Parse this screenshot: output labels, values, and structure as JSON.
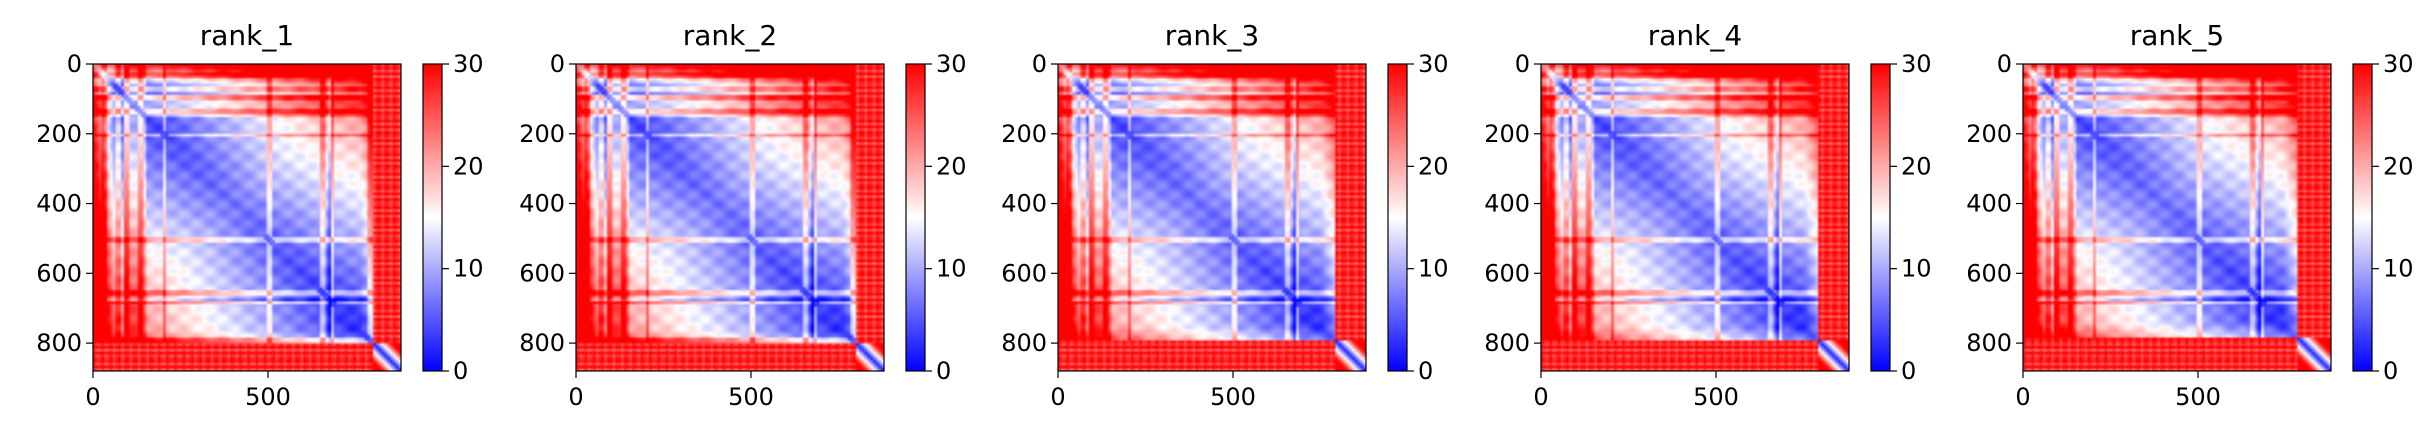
{
  "chart_data": [
    {
      "type": "heatmap",
      "title": "rank_1",
      "xlim": [
        0,
        880
      ],
      "ylim": [
        880,
        0
      ],
      "x_ticks": [
        0,
        500
      ],
      "y_ticks": [
        0,
        200,
        400,
        600,
        800
      ],
      "colorbar": {
        "min": 0,
        "max": 30,
        "ticks": [
          0,
          10,
          20,
          30
        ],
        "colormap": "bwr"
      },
      "features": {
        "breaks": [
          25,
          65,
          95,
          130,
          200,
          500,
          650,
          680,
          790,
          820,
          850
        ],
        "tail_start": 800,
        "stripe_col": 670
      }
    },
    {
      "type": "heatmap",
      "title": "rank_2",
      "xlim": [
        0,
        880
      ],
      "ylim": [
        880,
        0
      ],
      "x_ticks": [
        0,
        500
      ],
      "y_ticks": [
        0,
        200,
        400,
        600,
        800
      ],
      "colorbar": {
        "min": 0,
        "max": 30,
        "ticks": [
          0,
          10,
          20,
          30
        ],
        "colormap": "bwr"
      },
      "features": {
        "breaks": [
          25,
          65,
          95,
          130,
          200,
          500,
          650,
          680,
          790,
          820,
          850
        ],
        "tail_start": 800,
        "stripe_col": 670
      }
    },
    {
      "type": "heatmap",
      "title": "rank_3",
      "xlim": [
        0,
        880
      ],
      "ylim": [
        880,
        0
      ],
      "x_ticks": [
        0,
        500
      ],
      "y_ticks": [
        0,
        200,
        400,
        600,
        800
      ],
      "colorbar": {
        "min": 0,
        "max": 30,
        "ticks": [
          0,
          10,
          20,
          30
        ],
        "colormap": "bwr"
      },
      "features": {
        "breaks": [
          25,
          65,
          95,
          130,
          200,
          500,
          650,
          680,
          790,
          820,
          850
        ],
        "tail_start": 790,
        "stripe_col": 670
      }
    },
    {
      "type": "heatmap",
      "title": "rank_4",
      "xlim": [
        0,
        880
      ],
      "ylim": [
        880,
        0
      ],
      "x_ticks": [
        0,
        500
      ],
      "y_ticks": [
        0,
        200,
        400,
        600,
        800
      ],
      "colorbar": {
        "min": 0,
        "max": 30,
        "ticks": [
          0,
          10,
          20,
          30
        ],
        "colormap": "bwr"
      },
      "features": {
        "breaks": [
          25,
          65,
          95,
          130,
          200,
          500,
          650,
          680,
          790,
          820,
          850
        ],
        "tail_start": 790,
        "stripe_col": 670
      }
    },
    {
      "type": "heatmap",
      "title": "rank_5",
      "xlim": [
        0,
        880
      ],
      "ylim": [
        880,
        0
      ],
      "x_ticks": [
        0,
        500
      ],
      "y_ticks": [
        0,
        200,
        400,
        600,
        800
      ],
      "colorbar": {
        "min": 0,
        "max": 30,
        "ticks": [
          0,
          10,
          20,
          30
        ],
        "colormap": "bwr"
      },
      "features": {
        "breaks": [
          25,
          65,
          95,
          130,
          200,
          500,
          650,
          680,
          790,
          820,
          850
        ],
        "tail_start": 780,
        "stripe_col": 670
      }
    }
  ]
}
